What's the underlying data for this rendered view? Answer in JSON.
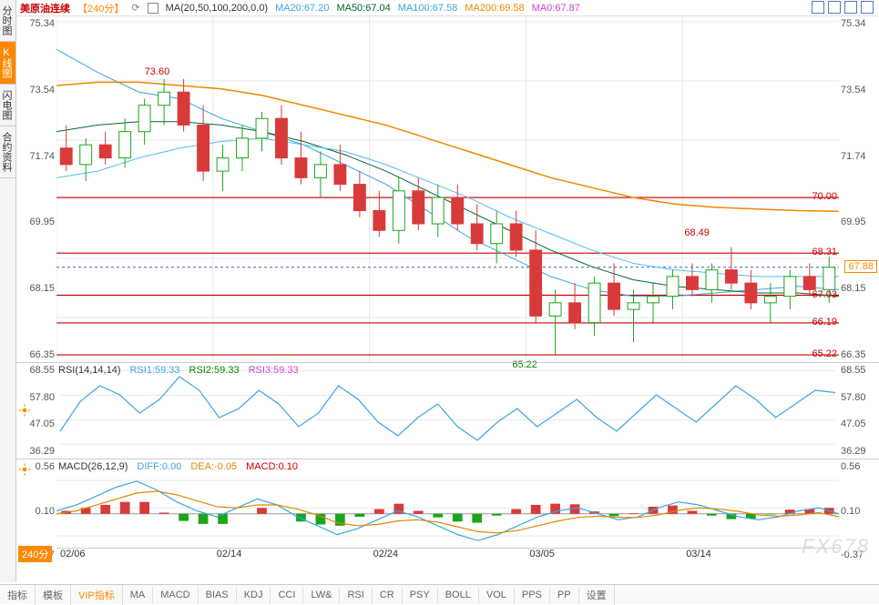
{
  "sidebar": {
    "tabs": [
      "分时图",
      "K线图",
      "闪电图",
      "合约资料"
    ],
    "active_index": 1
  },
  "header": {
    "symbol": "美原油连续",
    "timeframe": "【240分】",
    "ma_params": "MA(20,50,100,200,0,0)",
    "ma20": {
      "label": "MA20:",
      "value": "67.20",
      "color": "#3aa6dd"
    },
    "ma50": {
      "label": "MA50:",
      "value": "67.04",
      "color": "#006633"
    },
    "ma100": {
      "label": "MA100:",
      "value": "67.58",
      "color": "#3aa6dd"
    },
    "ma200": {
      "label": "MA200:",
      "value": "69.58",
      "color": "#ee8800"
    },
    "ma0": {
      "label": "MA0:",
      "value": "67.87",
      "color": "#cc44cc"
    }
  },
  "main_chart": {
    "y_ticks": [
      "75.34",
      "73.54",
      "71.74",
      "69.95",
      "68.15",
      "66.35"
    ],
    "x_ticks": [
      "02/06",
      "02/14",
      "02/24",
      "03/05",
      "03/14"
    ],
    "ylim": [
      65.0,
      75.5
    ],
    "grid_color": "#e8e8e8",
    "price_tag": "67.88",
    "price_tag_color": "#ff8800",
    "levels": [
      {
        "value": 70.0,
        "label": "70.00",
        "color": "#cc0000"
      },
      {
        "value": 68.31,
        "label": "68.31",
        "color": "#cc0000"
      },
      {
        "value": 67.03,
        "label": "67.03",
        "color": "#cc0000"
      },
      {
        "value": 66.19,
        "label": "66.19",
        "color": "#cc0000"
      },
      {
        "value": 65.22,
        "label": "65.22",
        "color": "#cc0000"
      }
    ],
    "dashed_level": {
      "value": 67.88,
      "color": "#3366cc"
    },
    "annotations": [
      {
        "text": "73.60",
        "x": 0.13,
        "y_val": 73.8,
        "color": "#cc0000"
      },
      {
        "text": "68.49",
        "x": 0.82,
        "y_val": 68.9,
        "color": "#cc0000"
      },
      {
        "text": "65.22",
        "x": 0.6,
        "y_val": 64.9,
        "color": "#008800"
      }
    ],
    "ma_series": {
      "ma20": {
        "color": "#3aa6dd",
        "width": 1,
        "pts": [
          74.5,
          73.8,
          73.2,
          73.0,
          72.4,
          72.0,
          71.6,
          71.0,
          70.4,
          69.6,
          68.8,
          68.2,
          67.6,
          67.2,
          67.0,
          67.0,
          67.1,
          67.2,
          67.3,
          67.2
        ]
      },
      "ma50": {
        "color": "#006633",
        "width": 1,
        "pts": [
          72.0,
          72.2,
          72.3,
          72.3,
          72.2,
          72.0,
          71.7,
          71.3,
          70.8,
          70.2,
          69.6,
          69.0,
          68.4,
          67.9,
          67.5,
          67.3,
          67.2,
          67.1,
          67.1,
          67.0
        ]
      },
      "ma100": {
        "color": "#55bbee",
        "width": 1,
        "pts": [
          70.6,
          70.8,
          71.2,
          71.5,
          71.7,
          71.8,
          71.6,
          71.4,
          71.0,
          70.5,
          70.0,
          69.4,
          68.9,
          68.4,
          68.0,
          67.8,
          67.7,
          67.6,
          67.6,
          67.6
        ]
      },
      "ma200": {
        "color": "#ee8800",
        "width": 1.5,
        "pts": [
          73.4,
          73.5,
          73.5,
          73.4,
          73.3,
          73.1,
          72.8,
          72.5,
          72.2,
          71.8,
          71.4,
          71.0,
          70.6,
          70.3,
          70.0,
          69.8,
          69.7,
          69.65,
          69.6,
          69.58
        ]
      }
    },
    "candles": [
      {
        "o": 71.5,
        "h": 72.2,
        "l": 70.8,
        "c": 71.0
      },
      {
        "o": 71.0,
        "h": 71.8,
        "l": 70.5,
        "c": 71.6
      },
      {
        "o": 71.6,
        "h": 72.0,
        "l": 71.0,
        "c": 71.2
      },
      {
        "o": 71.2,
        "h": 72.4,
        "l": 70.9,
        "c": 72.0
      },
      {
        "o": 72.0,
        "h": 73.0,
        "l": 71.6,
        "c": 72.8
      },
      {
        "o": 72.8,
        "h": 73.6,
        "l": 72.2,
        "c": 73.2
      },
      {
        "o": 73.2,
        "h": 73.6,
        "l": 72.0,
        "c": 72.2
      },
      {
        "o": 72.2,
        "h": 72.8,
        "l": 70.5,
        "c": 70.8
      },
      {
        "o": 70.8,
        "h": 71.6,
        "l": 70.2,
        "c": 71.2
      },
      {
        "o": 71.2,
        "h": 72.2,
        "l": 70.8,
        "c": 71.8
      },
      {
        "o": 71.8,
        "h": 72.6,
        "l": 71.4,
        "c": 72.4
      },
      {
        "o": 72.4,
        "h": 72.8,
        "l": 71.0,
        "c": 71.2
      },
      {
        "o": 71.2,
        "h": 72.0,
        "l": 70.4,
        "c": 70.6
      },
      {
        "o": 70.6,
        "h": 71.4,
        "l": 70.0,
        "c": 71.0
      },
      {
        "o": 71.0,
        "h": 71.6,
        "l": 70.2,
        "c": 70.4
      },
      {
        "o": 70.4,
        "h": 70.8,
        "l": 69.4,
        "c": 69.6
      },
      {
        "o": 69.6,
        "h": 70.2,
        "l": 68.8,
        "c": 69.0
      },
      {
        "o": 69.0,
        "h": 70.6,
        "l": 68.6,
        "c": 70.2
      },
      {
        "o": 70.2,
        "h": 70.6,
        "l": 69.0,
        "c": 69.2
      },
      {
        "o": 69.2,
        "h": 70.4,
        "l": 68.8,
        "c": 70.0
      },
      {
        "o": 70.0,
        "h": 70.4,
        "l": 69.0,
        "c": 69.2
      },
      {
        "o": 69.2,
        "h": 69.8,
        "l": 68.4,
        "c": 68.6
      },
      {
        "o": 68.6,
        "h": 69.6,
        "l": 68.0,
        "c": 69.2
      },
      {
        "o": 69.2,
        "h": 69.6,
        "l": 68.2,
        "c": 68.4
      },
      {
        "o": 68.4,
        "h": 69.0,
        "l": 66.2,
        "c": 66.4
      },
      {
        "o": 66.4,
        "h": 67.2,
        "l": 65.22,
        "c": 66.8
      },
      {
        "o": 66.8,
        "h": 67.4,
        "l": 66.0,
        "c": 66.2
      },
      {
        "o": 66.2,
        "h": 67.6,
        "l": 65.8,
        "c": 67.4
      },
      {
        "o": 67.4,
        "h": 68.0,
        "l": 66.4,
        "c": 66.6
      },
      {
        "o": 66.6,
        "h": 67.2,
        "l": 65.6,
        "c": 66.8
      },
      {
        "o": 66.8,
        "h": 67.4,
        "l": 66.2,
        "c": 67.0
      },
      {
        "o": 67.0,
        "h": 67.8,
        "l": 66.6,
        "c": 67.6
      },
      {
        "o": 67.6,
        "h": 68.0,
        "l": 67.0,
        "c": 67.2
      },
      {
        "o": 67.2,
        "h": 68.0,
        "l": 66.8,
        "c": 67.8
      },
      {
        "o": 67.8,
        "h": 68.49,
        "l": 67.2,
        "c": 67.4
      },
      {
        "o": 67.4,
        "h": 67.8,
        "l": 66.6,
        "c": 66.8
      },
      {
        "o": 66.8,
        "h": 67.4,
        "l": 66.19,
        "c": 67.0
      },
      {
        "o": 67.0,
        "h": 67.8,
        "l": 66.6,
        "c": 67.6
      },
      {
        "o": 67.6,
        "h": 68.0,
        "l": 67.0,
        "c": 67.2
      },
      {
        "o": 67.2,
        "h": 68.2,
        "l": 66.8,
        "c": 67.88
      }
    ],
    "candle_up_color": "#1aa51a",
    "candle_down_color": "#d83a3a"
  },
  "rsi": {
    "header": {
      "params": "RSI(14,14,14)",
      "rsi1": {
        "label": "RSI1:",
        "value": "59.33",
        "color": "#3aa6dd"
      },
      "rsi2": {
        "label": "RSI2:",
        "value": "59.33",
        "color": "#008800"
      },
      "rsi3": {
        "label": "RSI3:",
        "value": "59.33",
        "color": "#cc44cc"
      }
    },
    "y_ticks": [
      "68.55",
      "57.80",
      "47.05",
      "36.29"
    ],
    "ylim": [
      30,
      72
    ],
    "line_color": "#3aa6dd",
    "pts": [
      42,
      55,
      62,
      58,
      50,
      56,
      66,
      60,
      48,
      52,
      60,
      54,
      44,
      50,
      62,
      56,
      46,
      40,
      48,
      54,
      44,
      38,
      46,
      52,
      44,
      50,
      56,
      48,
      42,
      50,
      58,
      52,
      46,
      54,
      62,
      56,
      48,
      54,
      60,
      59
    ]
  },
  "macd": {
    "header": {
      "params": "MACD(26,12,9)",
      "diff": {
        "label": "DIFF:",
        "value": "0.00",
        "color": "#3aa6dd"
      },
      "dea": {
        "label": "DEA:",
        "value": "-0.05",
        "color": "#dd8800"
      },
      "macd": {
        "label": "MACD:",
        "value": "0.10",
        "color": "#cc0000"
      }
    },
    "y_ticks": [
      "0.56",
      "0.10",
      "-0.37"
    ],
    "ylim": [
      -0.7,
      0.8
    ],
    "diff_color": "#3aa6dd",
    "dea_color": "#dd8800",
    "hist_up_color": "#d83a3a",
    "hist_down_color": "#1aa51a",
    "diff": [
      0.05,
      0.15,
      0.3,
      0.45,
      0.55,
      0.4,
      0.2,
      0.05,
      -0.05,
      0.1,
      0.25,
      0.15,
      -0.05,
      -0.2,
      -0.35,
      -0.25,
      -0.1,
      0.05,
      -0.05,
      -0.2,
      -0.35,
      -0.45,
      -0.35,
      -0.2,
      -0.05,
      0.05,
      0.1,
      0.0,
      -0.1,
      -0.05,
      0.1,
      0.2,
      0.15,
      0.05,
      -0.05,
      -0.1,
      -0.05,
      0.05,
      0.1,
      0.0
    ],
    "dea": [
      0.0,
      0.05,
      0.15,
      0.25,
      0.35,
      0.38,
      0.32,
      0.22,
      0.12,
      0.1,
      0.15,
      0.15,
      0.08,
      -0.02,
      -0.15,
      -0.2,
      -0.18,
      -0.12,
      -0.1,
      -0.14,
      -0.22,
      -0.3,
      -0.32,
      -0.28,
      -0.2,
      -0.12,
      -0.06,
      -0.04,
      -0.06,
      -0.06,
      -0.02,
      0.06,
      0.1,
      0.08,
      0.04,
      -0.02,
      -0.04,
      -0.02,
      0.02,
      -0.05
    ],
    "hist": [
      0.05,
      0.1,
      0.15,
      0.2,
      0.2,
      0.02,
      -0.12,
      -0.17,
      -0.17,
      0.0,
      0.1,
      0.0,
      -0.13,
      -0.18,
      -0.2,
      -0.05,
      0.08,
      0.17,
      0.05,
      -0.06,
      -0.13,
      -0.15,
      -0.03,
      0.08,
      0.15,
      0.17,
      0.16,
      0.04,
      -0.04,
      0.01,
      0.12,
      0.14,
      0.05,
      -0.03,
      -0.09,
      -0.08,
      -0.01,
      0.07,
      0.08,
      0.1
    ]
  },
  "x_axis_badge": "240分",
  "watermark": "FX678",
  "bottom_tabs": [
    "指标",
    "模板",
    "VIP指标",
    "MA",
    "MACD",
    "BIAS",
    "KDJ",
    "CCI",
    "LW&",
    "RSI",
    "CR",
    "PSY",
    "BOLL",
    "VOL",
    "PPS",
    "PP",
    "设置"
  ],
  "bottom_vip_index": 2
}
